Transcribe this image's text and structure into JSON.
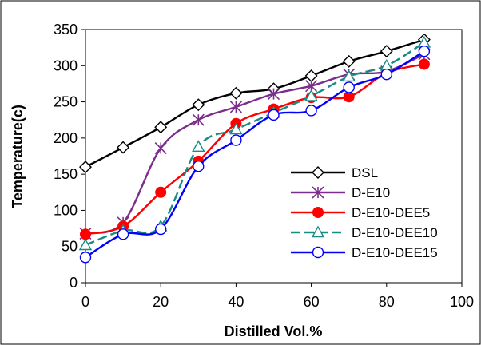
{
  "chart_data": {
    "type": "line",
    "xlabel": "Distilled Vol.%",
    "ylabel": "Temperature(c)",
    "xlim": [
      0,
      100
    ],
    "ylim": [
      0,
      350
    ],
    "x_ticks": [
      "0",
      "20",
      "40",
      "60",
      "80",
      "100"
    ],
    "y_ticks": [
      "0",
      "50",
      "100",
      "150",
      "200",
      "250",
      "300",
      "350"
    ],
    "legend_position": "lower-right",
    "x": [
      0,
      10,
      20,
      30,
      40,
      50,
      60,
      70,
      80,
      90
    ],
    "series": [
      {
        "name": "DSL",
        "color": "#000000",
        "marker": "diamond",
        "dash": "solid",
        "values": [
          160,
          187,
          215,
          246,
          262,
          268,
          286,
          306,
          320,
          336
        ]
      },
      {
        "name": "D-E10",
        "color": "#7b2c8c",
        "marker": "asterisk",
        "dash": "solid",
        "values": [
          68,
          83,
          186,
          225,
          243,
          261,
          272,
          288,
          292,
          316
        ]
      },
      {
        "name": "D-E10-DEE5",
        "color": "#ff0000",
        "marker": "filled-circle",
        "dash": "solid",
        "values": [
          67,
          78,
          125,
          168,
          220,
          240,
          256,
          257,
          290,
          302
        ]
      },
      {
        "name": "D-E10-DEE10",
        "color": "#1b8a84",
        "marker": "triangle",
        "dash": "dashed",
        "values": [
          52,
          72,
          78,
          188,
          212,
          235,
          258,
          285,
          300,
          332
        ]
      },
      {
        "name": "D-E10-DEE15",
        "color": "#0000ff",
        "marker": "circle",
        "dash": "solid",
        "values": [
          35,
          67,
          74,
          161,
          197,
          232,
          238,
          270,
          288,
          320
        ]
      }
    ]
  }
}
